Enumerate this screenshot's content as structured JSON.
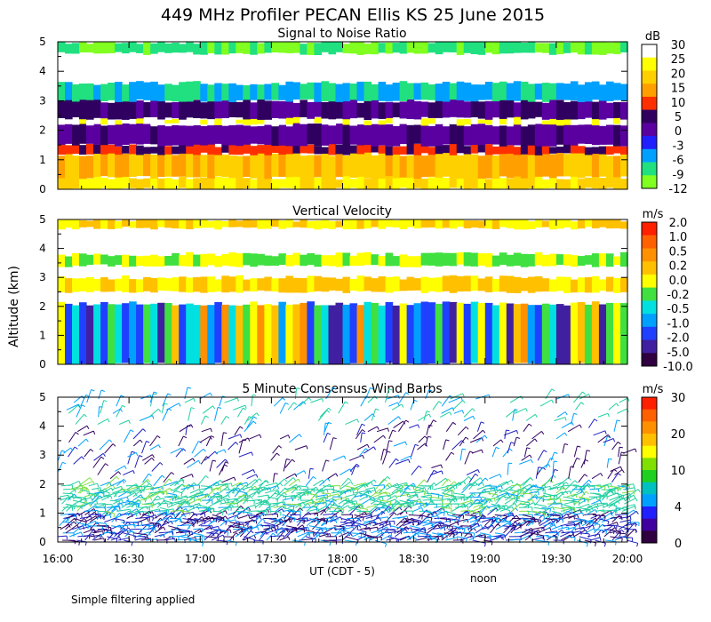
{
  "chart_data": {
    "type": "heatmap",
    "title": "449 MHz Profiler PECAN Ellis KS 25 June 2015",
    "ylabel": "Altitude (km)",
    "xlabel": "UT  (CDT - 5)",
    "xlabel_note": "noon",
    "footnote": "Simple filtering applied",
    "x_ticks": [
      "16:00",
      "16:30",
      "17:00",
      "17:30",
      "18:00",
      "18:30",
      "19:00",
      "19:30",
      "20:00"
    ],
    "x_range": [
      "16:00",
      "20:00"
    ],
    "y_range": [
      0,
      5
    ],
    "y_ticks": [
      "0",
      "1",
      "2",
      "3",
      "4",
      "5"
    ],
    "panels": [
      {
        "id": "snr",
        "title": "Signal to Noise Ratio",
        "units": "dB",
        "colorbar_labels": [
          "30",
          "25",
          "20",
          "15",
          "10",
          "5",
          "0",
          "-3",
          "-6",
          "-9",
          "-12"
        ],
        "colorbar_colors": [
          "#ffffff",
          "#ffff00",
          "#ffd000",
          "#ffa000",
          "#ff3000",
          "#300060",
          "#5a00a0",
          "#2020ff",
          "#00a0ff",
          "#20e080",
          "#80ff20"
        ],
        "layers": [
          {
            "from_km": 0.0,
            "to_km": 0.4,
            "value_db": 25
          },
          {
            "from_km": 0.4,
            "to_km": 1.2,
            "value_db": 20
          },
          {
            "from_km": 1.2,
            "to_km": 1.5,
            "value_db": 10
          },
          {
            "from_km": 1.5,
            "to_km": 2.2,
            "value_db": 3
          },
          {
            "from_km": 2.2,
            "to_km": 2.4,
            "value_db": 30
          },
          {
            "from_km": 2.4,
            "to_km": 3.0,
            "value_db": 5
          },
          {
            "from_km": 3.0,
            "to_km": 3.6,
            "value_db": -6
          },
          {
            "from_km": 4.6,
            "to_km": 5.0,
            "value_db": -9
          }
        ]
      },
      {
        "id": "vv",
        "title": "Vertical Velocity",
        "units": "m/s",
        "colorbar_labels": [
          "2.0",
          "1.0",
          "0.5",
          "0.2",
          "0.0",
          "-0.2",
          "-0.5",
          "-1.0",
          "-2.0",
          "-5.0",
          "-10.0"
        ],
        "colorbar_colors": [
          "#ff2000",
          "#ff6000",
          "#ff9000",
          "#ffc000",
          "#ffff00",
          "#40e040",
          "#00e0e0",
          "#00a0ff",
          "#2040ff",
          "#4020a0",
          "#300040"
        ],
        "layers": [
          {
            "from_km": 0.0,
            "to_km": 2.1,
            "value_ms": -0.2
          },
          {
            "from_km": 2.5,
            "to_km": 3.0,
            "value_ms": 0.2
          },
          {
            "from_km": 3.4,
            "to_km": 3.8,
            "value_ms": 0.0
          },
          {
            "from_km": 4.7,
            "to_km": 5.0,
            "value_ms": 0.2
          }
        ]
      },
      {
        "id": "wind",
        "title": "5 Minute Consensus Wind Barbs",
        "units": "m/s",
        "colorbar_labels": [
          "30",
          "20",
          "10",
          "4",
          "0"
        ],
        "colorbar_colors": [
          "#ff2000",
          "#ff6000",
          "#ff9000",
          "#ffc000",
          "#ffff00",
          "#80e000",
          "#20d020",
          "#00c0c0",
          "#00a0ff",
          "#2020ff",
          "#4000a0",
          "#300040"
        ],
        "barb_speed_ms": [
          {
            "from_km": 0.0,
            "to_km": 1.0,
            "speed": 4
          },
          {
            "from_km": 1.0,
            "to_km": 2.0,
            "speed": 10
          },
          {
            "from_km": 2.0,
            "to_km": 4.0,
            "speed": 3
          },
          {
            "from_km": 4.0,
            "to_km": 5.0,
            "speed": 8
          }
        ]
      }
    ]
  }
}
